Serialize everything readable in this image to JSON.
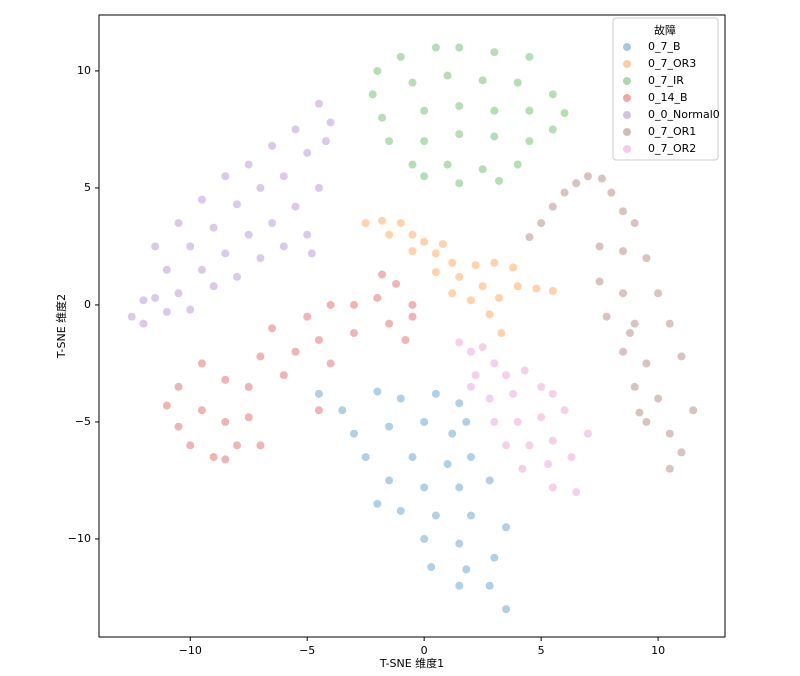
{
  "chart_data": {
    "type": "scatter",
    "xlabel": "T-SNE 维度1",
    "ylabel": "T-SNE 维度2",
    "xlim": [
      -13.9,
      12.86
    ],
    "ylim": [
      -14.19,
      12.39
    ],
    "xticks": [
      {
        "value": -10,
        "label": "−10"
      },
      {
        "value": -5,
        "label": "−5"
      },
      0,
      5,
      10
    ],
    "yticks": [
      {
        "value": -10,
        "label": "−10"
      },
      {
        "value": -5,
        "label": "−5"
      },
      0,
      5,
      10
    ],
    "legend_title": "故障",
    "legend_loc": "upper right",
    "series": [
      {
        "name": "0_7_B",
        "color": "#1f77b4",
        "x": [
          -4.5,
          -3.5,
          -2,
          -1,
          0.5,
          1.5,
          -3,
          -1.5,
          0,
          1.2,
          -2.5,
          -0.5,
          1,
          2,
          -1.5,
          0,
          1.5,
          2.8,
          -1,
          0.5,
          2,
          3.5,
          0,
          1.5,
          0.3,
          1.8,
          3,
          1.5,
          2.8,
          3.5,
          1.8,
          -2
        ],
        "y": [
          -3.8,
          -4.5,
          -3.7,
          -4,
          -3.8,
          -4.2,
          -5.5,
          -5.2,
          -5,
          -5.5,
          -6.5,
          -6.5,
          -6.8,
          -6.5,
          -7.5,
          -7.8,
          -7.8,
          -7.5,
          -8.8,
          -9,
          -9,
          -9.5,
          -10,
          -10.2,
          -11.2,
          -11.3,
          -10.8,
          -12,
          -12,
          -13,
          -5,
          -8.5
        ]
      },
      {
        "name": "0_7_OR3",
        "color": "#ff7f0e",
        "x": [
          -2.5,
          -1.8,
          -1,
          -1.5,
          -0.5,
          0,
          0.8,
          0.5,
          1.2,
          0.5,
          1.5,
          2.2,
          3,
          3.8,
          2.5,
          3.2,
          2,
          2.8,
          3.3,
          4,
          4.8,
          5.5,
          1.2,
          -0.5
        ],
        "y": [
          3.5,
          3.6,
          3.5,
          3,
          3,
          2.7,
          2.6,
          2.2,
          1.8,
          1.4,
          1.2,
          1.7,
          1.8,
          1.6,
          0.8,
          0.3,
          0.2,
          -0.4,
          -1.2,
          0.8,
          0.7,
          0.6,
          0.5,
          2.3
        ]
      },
      {
        "name": "0_7_IR",
        "color": "#2ca02c",
        "x": [
          -2,
          -1,
          0.5,
          1.5,
          3,
          4.5,
          -2.2,
          -0.5,
          1,
          2.5,
          4,
          5.5,
          -1.8,
          0,
          1.5,
          3,
          4.5,
          6,
          -1.5,
          0,
          1.5,
          3,
          4.5,
          5.5,
          -0.5,
          1,
          2.5,
          4,
          1.5,
          0,
          3.2
        ],
        "y": [
          10,
          10.6,
          11,
          11,
          10.8,
          10.6,
          9,
          9.5,
          9.8,
          9.6,
          9.5,
          9,
          8,
          8.3,
          8.5,
          8.3,
          8.3,
          8.2,
          7,
          7,
          7.3,
          7.2,
          7,
          7.5,
          6,
          6,
          5.8,
          6,
          5.2,
          5.5,
          5.3
        ]
      },
      {
        "name": "0_14_B",
        "color": "#d62728",
        "x": [
          -11,
          -10.5,
          -10,
          -9,
          -8.5,
          -8,
          -10.5,
          -9.5,
          -8.5,
          -9.5,
          -8.5,
          -7.5,
          -7.5,
          -7,
          -6.5,
          -6,
          -5.5,
          -5,
          -4.5,
          -4,
          -4,
          -3,
          -3,
          -2,
          -1.5,
          -0.8,
          -0.5,
          -1.8,
          -1.2,
          -0.5,
          -4.5,
          -7
        ],
        "y": [
          -4.3,
          -5.2,
          -6,
          -6.5,
          -6.6,
          -6,
          -3.5,
          -2.5,
          -3.2,
          -4.5,
          -5,
          -4.8,
          -3.5,
          -2.2,
          -1,
          -3,
          -2,
          -0.5,
          -1.5,
          -2.5,
          0,
          0,
          -1.2,
          0.3,
          -0.8,
          -1.5,
          0,
          1.3,
          0.9,
          -0.5,
          -4.5,
          -6
        ]
      },
      {
        "name": "0_0_Normal0",
        "color": "#9467bd",
        "x": [
          -12.5,
          -12,
          -11.5,
          -12,
          -11,
          -11.5,
          -11,
          -10.5,
          -10,
          -10.5,
          -10,
          -9.5,
          -9,
          -9.5,
          -9,
          -8.5,
          -8,
          -8.5,
          -8,
          -7.5,
          -7,
          -7.5,
          -7,
          -6.5,
          -6,
          -6.5,
          -6,
          -5.5,
          -5,
          -5.5,
          -5,
          -4.5,
          -4.5,
          -4,
          -4.2,
          -4.8
        ],
        "y": [
          -0.5,
          -0.8,
          0.3,
          0.2,
          -0.3,
          2.5,
          1.5,
          0.5,
          -0.2,
          3.5,
          2.5,
          1.5,
          0.8,
          4.5,
          3.3,
          2.2,
          1.2,
          5.5,
          4.3,
          3,
          2,
          6,
          5,
          3.5,
          2.5,
          6.8,
          5.5,
          4.2,
          3,
          7.5,
          6.5,
          5,
          8.6,
          7.8,
          7,
          2.2
        ]
      },
      {
        "name": "0_7_OR1",
        "color": "#8c564b",
        "x": [
          4.5,
          5,
          5.5,
          6,
          6.5,
          7,
          7.6,
          8,
          8.5,
          9,
          7.5,
          8.5,
          9.5,
          7.5,
          8.5,
          10,
          7.8,
          9,
          10.5,
          8.5,
          9.5,
          11,
          9,
          10,
          11.5,
          9.5,
          10.5,
          9.2,
          10.5,
          11,
          8.8
        ],
        "y": [
          2.9,
          3.5,
          4.2,
          4.8,
          5.2,
          5.5,
          5.4,
          4.8,
          4,
          3.5,
          2.5,
          2.3,
          2,
          1,
          0.5,
          0.5,
          -0.5,
          -0.8,
          -0.8,
          -2,
          -2.5,
          -2.2,
          -3.5,
          -4,
          -4.5,
          -5,
          -5.5,
          -4.6,
          -7,
          -6.3,
          -1.2
        ]
      },
      {
        "name": "0_7_OR2",
        "color": "#e377c2",
        "x": [
          1.5,
          2,
          2.5,
          3,
          2.2,
          3.5,
          4.3,
          2.8,
          3.8,
          5,
          5.5,
          3,
          4,
          5,
          6,
          3.5,
          4.5,
          5.5,
          7,
          4.2,
          5.3,
          6.3,
          5.5,
          6.5,
          2
        ],
        "y": [
          -1.6,
          -2,
          -1.8,
          -2.5,
          -3,
          -3,
          -2.8,
          -4,
          -3.8,
          -3.5,
          -3.8,
          -5,
          -5,
          -4.8,
          -4.5,
          -6,
          -6,
          -5.8,
          -5.5,
          -7,
          -6.8,
          -6.5,
          -7.8,
          -8,
          -3.5
        ]
      }
    ]
  }
}
